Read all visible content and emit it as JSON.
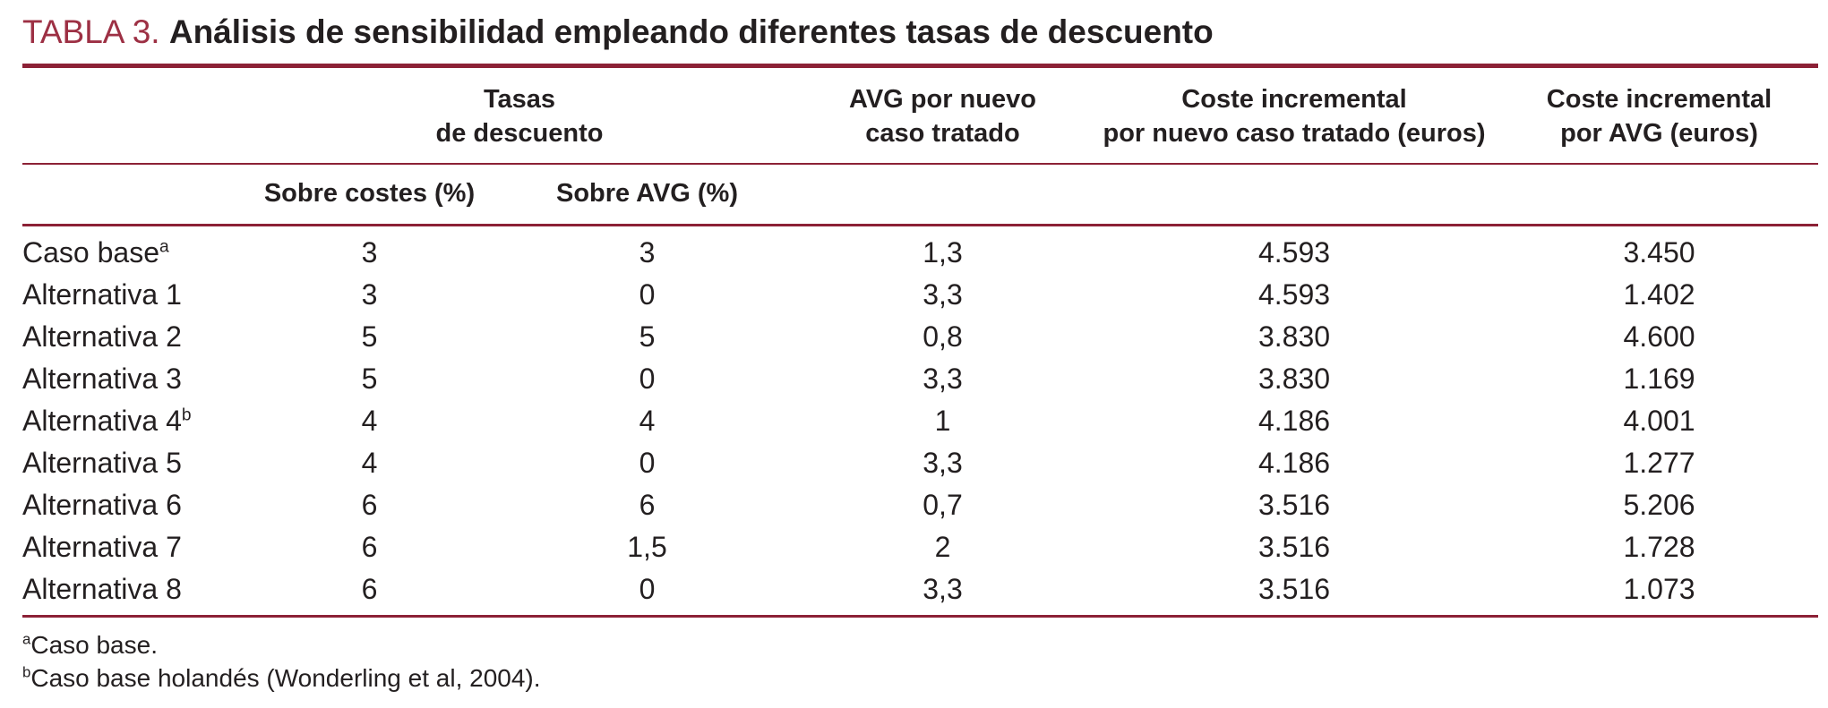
{
  "title": {
    "label": "TABLA 3.",
    "text": "Análisis de sensibilidad empleando diferentes tasas de descuento"
  },
  "table": {
    "header_row1": {
      "col_label": "",
      "tasas": "Tasas\nde descuento",
      "avg": "AVG por nuevo\ncaso tratado",
      "coste_nuevo": "Coste incremental\npor nuevo caso tratado (euros)",
      "coste_avg": "Coste incremental\npor AVG (euros)"
    },
    "header_row2": {
      "col_label": "",
      "sobre_costes": "Sobre costes (%)",
      "sobre_avg": "Sobre AVG (%)",
      "col3": "",
      "col4": "",
      "col5": ""
    },
    "rows": [
      {
        "label": "Caso base",
        "sup": "a",
        "values": [
          "3",
          "3",
          "1,3",
          "4.593",
          "3.450"
        ]
      },
      {
        "label": "Alternativa 1",
        "sup": "",
        "values": [
          "3",
          "0",
          "3,3",
          "4.593",
          "1.402"
        ]
      },
      {
        "label": "Alternativa 2",
        "sup": "",
        "values": [
          "5",
          "5",
          "0,8",
          "3.830",
          "4.600"
        ]
      },
      {
        "label": "Alternativa 3",
        "sup": "",
        "values": [
          "5",
          "0",
          "3,3",
          "3.830",
          "1.169"
        ]
      },
      {
        "label": "Alternativa 4",
        "sup": "b",
        "values": [
          "4",
          "4",
          "1",
          "4.186",
          "4.001"
        ]
      },
      {
        "label": "Alternativa 5",
        "sup": "",
        "values": [
          "4",
          "0",
          "3,3",
          "4.186",
          "1.277"
        ]
      },
      {
        "label": "Alternativa 6",
        "sup": "",
        "values": [
          "6",
          "6",
          "0,7",
          "3.516",
          "5.206"
        ]
      },
      {
        "label": "Alternativa 7",
        "sup": "",
        "values": [
          "6",
          "1,5",
          "2",
          "3.516",
          "1.728"
        ]
      },
      {
        "label": "Alternativa 8",
        "sup": "",
        "values": [
          "6",
          "0",
          "3,3",
          "3.516",
          "1.073"
        ]
      }
    ]
  },
  "footnotes": [
    {
      "sup": "a",
      "text": "Caso base."
    },
    {
      "sup": "b",
      "text": "Caso base holandés (Wonderling et al, 2004)."
    }
  ],
  "colors": {
    "accent_text": "#9d3044",
    "rule": "#8c2136",
    "body_text": "#231f20",
    "background": "#ffffff"
  },
  "chart_data": {
    "type": "table",
    "title": "TABLA 3. Análisis de sensibilidad empleando diferentes tasas de descuento",
    "columns": [
      "",
      "Tasas de descuento — Sobre costes (%)",
      "Tasas de descuento — Sobre AVG (%)",
      "AVG por nuevo caso tratado",
      "Coste incremental por nuevo caso tratado (euros)",
      "Coste incremental por AVG (euros)"
    ],
    "rows": [
      [
        "Caso base (a)",
        "3",
        "3",
        "1,3",
        "4.593",
        "3.450"
      ],
      [
        "Alternativa 1",
        "3",
        "0",
        "3,3",
        "4.593",
        "1.402"
      ],
      [
        "Alternativa 2",
        "5",
        "5",
        "0,8",
        "3.830",
        "4.600"
      ],
      [
        "Alternativa 3",
        "5",
        "0",
        "3,3",
        "3.830",
        "1.169"
      ],
      [
        "Alternativa 4 (b)",
        "4",
        "4",
        "1",
        "4.186",
        "4.001"
      ],
      [
        "Alternativa 5",
        "4",
        "0",
        "3,3",
        "4.186",
        "1.277"
      ],
      [
        "Alternativa 6",
        "6",
        "6",
        "0,7",
        "3.516",
        "5.206"
      ],
      [
        "Alternativa 7",
        "6",
        "1,5",
        "2",
        "3.516",
        "1.728"
      ],
      [
        "Alternativa 8",
        "6",
        "0",
        "3,3",
        "3.516",
        "1.073"
      ]
    ],
    "footnotes": [
      "a: Caso base.",
      "b: Caso base holandés (Wonderling et al, 2004)."
    ]
  }
}
